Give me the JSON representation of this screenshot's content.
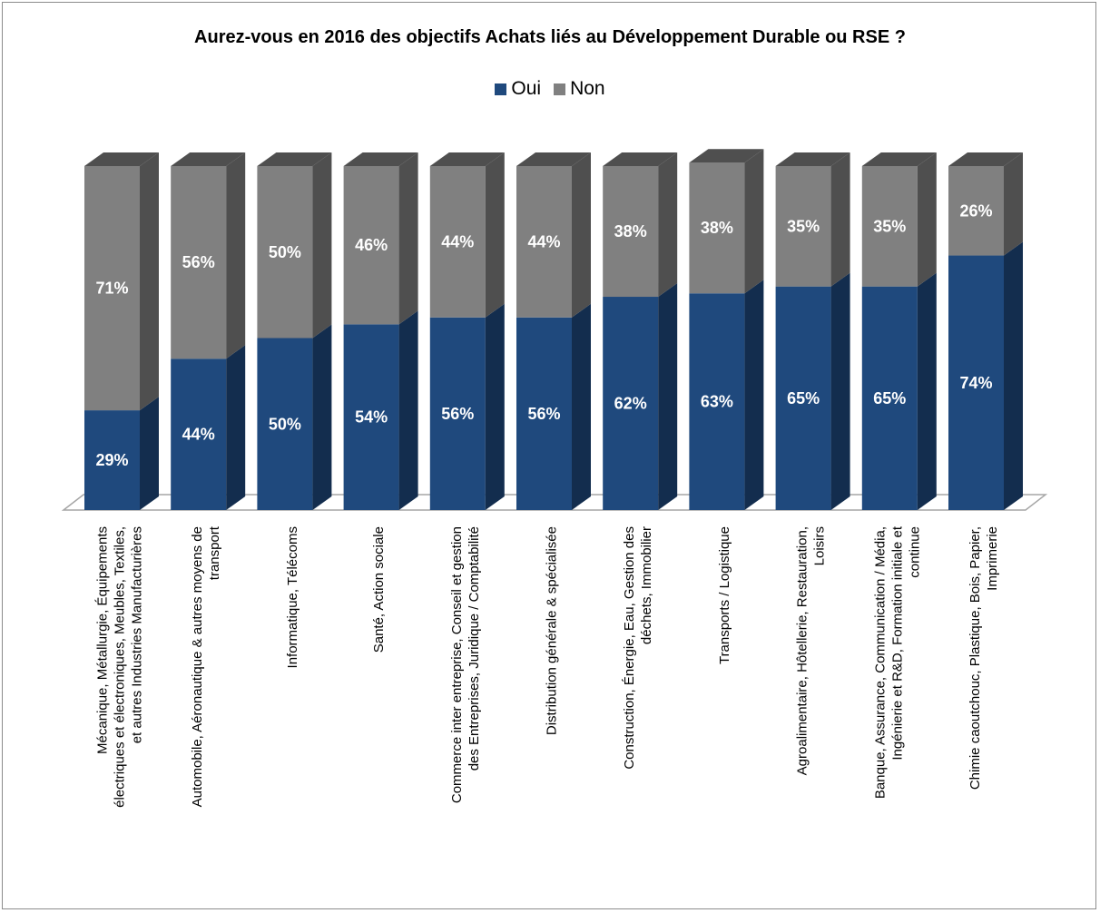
{
  "chart_data": {
    "type": "bar",
    "stacked": true,
    "three_d": true,
    "title": "Aurez-vous en 2016 des objectifs Achats liés au Développement Durable ou RSE ?",
    "legend_position": "top",
    "categories": [
      [
        "Mécanique, Métallurgie, Équipements",
        "électriques et électroniques, Meubles, Textiles,",
        "et autres Industries Manufacturières"
      ],
      [
        "Automobile, Aéronautique & autres moyens de",
        "transport"
      ],
      [
        "Informatique, Télécoms"
      ],
      [
        "Santé, Action sociale"
      ],
      [
        "Commerce inter entreprise, Conseil et gestion",
        "des Entreprises, Juridique / Comptabilité"
      ],
      [
        "Distribution générale & spécialisée"
      ],
      [
        "Construction, Énergie, Eau, Gestion des",
        "déchets, Immobilier"
      ],
      [
        "Transports / Logistique"
      ],
      [
        "Agroalimentaire, Hôtellerie, Restauration,",
        "Loisirs"
      ],
      [
        "Banque, Assurance, Communication / Média,",
        "Ingénierie et R&D, Formation initiale et",
        "continue"
      ],
      [
        "Chimie caoutchouc, Plastique, Bois, Papier,",
        "Imprimerie"
      ]
    ],
    "series": [
      {
        "name": "Oui",
        "color": "#1f497d",
        "values": [
          29,
          44,
          50,
          54,
          56,
          56,
          62,
          63,
          65,
          65,
          74
        ],
        "labels": [
          "29%",
          "44%",
          "50%",
          "54%",
          "56%",
          "56%",
          "62%",
          "63%",
          "65%",
          "65%",
          "74%"
        ]
      },
      {
        "name": "Non",
        "color": "#808080",
        "values": [
          71,
          56,
          50,
          46,
          44,
          44,
          38,
          38,
          35,
          35,
          26
        ],
        "labels": [
          "71%",
          "56%",
          "50%",
          "46%",
          "44%",
          "44%",
          "38%",
          "38%",
          "35%",
          "35%",
          "26%"
        ]
      }
    ],
    "ylim": [
      0,
      100
    ],
    "grid": false
  }
}
